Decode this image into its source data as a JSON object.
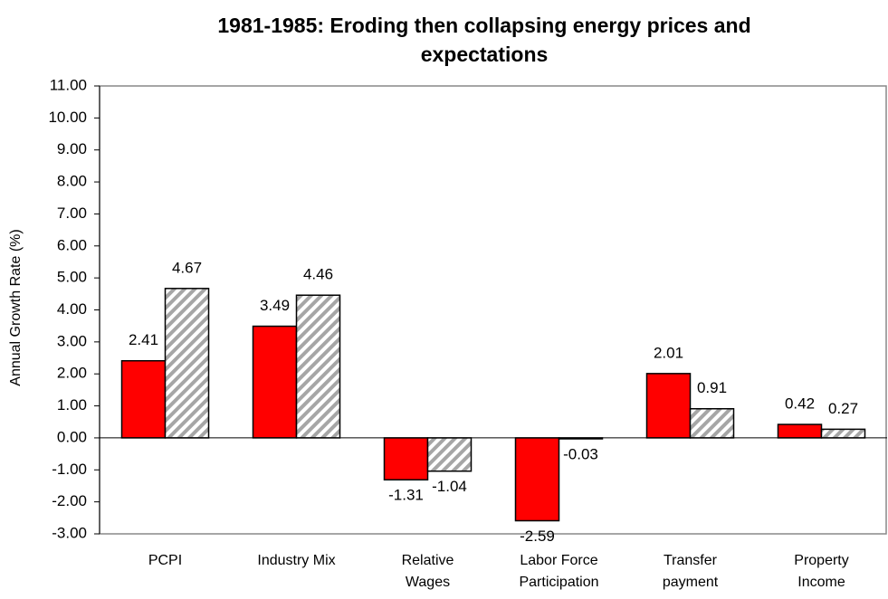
{
  "chart_data": {
    "type": "bar",
    "title": "1981-1985: Eroding then collapsing energy prices and expectations",
    "y_axis_label": "Annual Growth Rate (%)",
    "categories": [
      "PCPI",
      "Industry Mix",
      "Relative\nWages",
      "Labor Force\nParticipation",
      "Transfer\npayment",
      "Property\nIncome"
    ],
    "series": [
      {
        "color": "#ff0000",
        "values": [
          2.41,
          3.49,
          -1.31,
          -2.59,
          2.01,
          0.42
        ]
      },
      {
        "color": "#a6a6a6",
        "pattern": "hatch",
        "values": [
          4.67,
          4.46,
          -1.04,
          -0.03,
          0.91,
          0.27
        ]
      }
    ],
    "ylim": [
      -3,
      11
    ],
    "yticks": [
      {
        "value": -3,
        "label": "-3.00"
      },
      {
        "value": -2,
        "label": "-2.00"
      },
      {
        "value": -1,
        "label": "-1.00"
      },
      {
        "value": 0,
        "label": "0.00"
      },
      {
        "value": 1,
        "label": "1.00"
      },
      {
        "value": 2,
        "label": "2.00"
      },
      {
        "value": 3,
        "label": "3.00"
      },
      {
        "value": 4,
        "label": "4.00"
      },
      {
        "value": 5,
        "label": "5.00"
      },
      {
        "value": 6,
        "label": "6.00"
      },
      {
        "value": 7,
        "label": "7.00"
      },
      {
        "value": 8,
        "label": "8.00"
      },
      {
        "value": 9,
        "label": "9.00"
      },
      {
        "value": 10,
        "label": "10.00"
      },
      {
        "value": 11,
        "label": "11.00"
      }
    ],
    "grid": false
  }
}
